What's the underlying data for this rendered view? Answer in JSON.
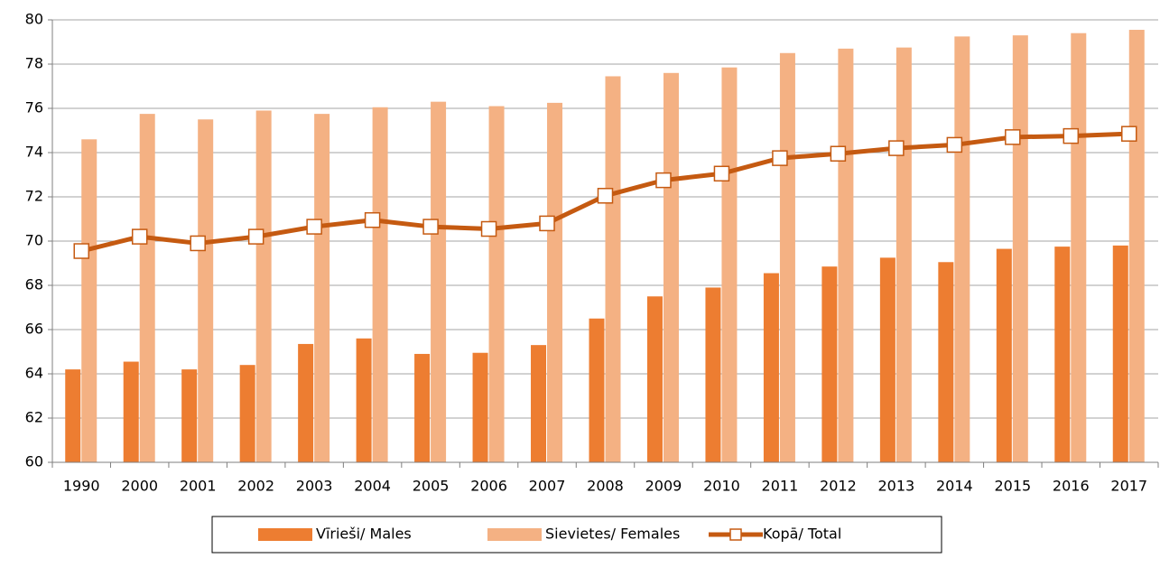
{
  "chart_data": {
    "type": "bar_line",
    "categories": [
      "1990",
      "2000",
      "2001",
      "2002",
      "2003",
      "2004",
      "2005",
      "2006",
      "2007",
      "2008",
      "2009",
      "2010",
      "2011",
      "2012",
      "2013",
      "2014",
      "2015",
      "2016",
      "2017"
    ],
    "series": [
      {
        "name": "Vīrieši/ Males",
        "type": "bar",
        "color": "#ed7d31",
        "values": [
          64.2,
          64.55,
          64.2,
          64.4,
          65.35,
          65.6,
          64.9,
          64.95,
          65.3,
          66.5,
          67.5,
          67.9,
          68.55,
          68.85,
          69.25,
          69.05,
          69.65,
          69.75,
          69.8
        ]
      },
      {
        "name": "Sievietes/ Females",
        "type": "bar",
        "color": "#f4b183",
        "values": [
          74.6,
          75.75,
          75.5,
          75.9,
          75.75,
          76.05,
          76.3,
          76.1,
          76.25,
          77.45,
          77.6,
          77.85,
          78.5,
          78.7,
          78.75,
          79.25,
          79.3,
          79.4,
          79.55
        ]
      },
      {
        "name": "Kopā/ Total",
        "type": "line",
        "color": "#c55a11",
        "values": [
          69.55,
          70.2,
          69.9,
          70.2,
          70.65,
          70.95,
          70.65,
          70.55,
          70.8,
          72.05,
          72.75,
          73.05,
          73.75,
          73.95,
          74.2,
          74.35,
          74.7,
          74.75,
          74.85
        ]
      }
    ],
    "ylim": [
      60,
      80
    ],
    "yticks": [
      60,
      62,
      64,
      66,
      68,
      70,
      72,
      74,
      76,
      78,
      80
    ],
    "grid": true,
    "legend": "bottom"
  }
}
